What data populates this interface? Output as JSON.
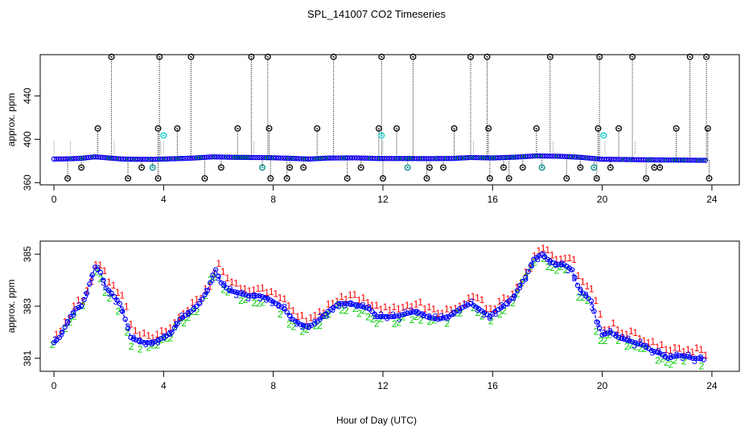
{
  "figure": {
    "title": "SPL_141007  CO2 Timeseries",
    "xlabel": "Hour of Day (UTC)"
  },
  "colors": {
    "black": "#000000",
    "blue": "#0000ff",
    "red": "#ff0000",
    "green": "#00cc00",
    "cyan": "#00cccc",
    "teal": "#008b8b",
    "flag_low": "#8b0000"
  },
  "chart_data": [
    {
      "type": "scatter",
      "panel": "top",
      "title": "",
      "xlabel": "",
      "ylabel": "approx. ppm",
      "xlim": [
        -0.5,
        25
      ],
      "ylim": [
        358,
        478
      ],
      "xticks": [
        0,
        4,
        8,
        12,
        16,
        20,
        24
      ],
      "yticks": [
        360,
        400,
        440
      ],
      "baseline": [
        [
          0,
          381.8
        ],
        [
          0.5,
          382.0
        ],
        [
          1.0,
          382.5
        ],
        [
          1.5,
          383.8
        ],
        [
          1.8,
          383.2
        ],
        [
          2.5,
          381.8
        ],
        [
          3.0,
          381.6
        ],
        [
          3.6,
          381.5
        ],
        [
          4.0,
          381.8
        ],
        [
          5.0,
          382.6
        ],
        [
          5.8,
          383.8
        ],
        [
          6.5,
          383.4
        ],
        [
          7.8,
          383.1
        ],
        [
          8.5,
          382.6
        ],
        [
          9.3,
          381.8
        ],
        [
          10.0,
          382.7
        ],
        [
          11.0,
          382.9
        ],
        [
          11.8,
          382.3
        ],
        [
          12.5,
          382.3
        ],
        [
          13.5,
          382.2
        ],
        [
          14.5,
          382.3
        ],
        [
          15.2,
          383.2
        ],
        [
          16.0,
          382.8
        ],
        [
          16.8,
          383.5
        ],
        [
          17.6,
          384.7
        ],
        [
          18.5,
          384.3
        ],
        [
          19.2,
          383.4
        ],
        [
          20.0,
          381.6
        ],
        [
          21.0,
          381.3
        ],
        [
          22.0,
          381.0
        ],
        [
          23.0,
          380.8
        ],
        [
          23.7,
          380.6
        ]
      ],
      "spike_high": [
        2.1,
        3.85,
        5.0,
        7.2,
        7.8,
        10.2,
        11.95,
        13.1,
        15.2,
        15.8,
        18.1,
        19.9,
        21.1,
        23.2,
        23.8
      ],
      "spike_mid": [
        1.6,
        3.8,
        4.5,
        6.7,
        7.85,
        9.6,
        11.85,
        12.5,
        14.6,
        15.85,
        17.6,
        19.85,
        20.6,
        22.7,
        23.85
      ],
      "spike_low": [
        0.5,
        2.7,
        3.8,
        5.5,
        7.9,
        8.5,
        10.7,
        12.0,
        13.6,
        15.9,
        16.6,
        18.7,
        19.8,
        21.6,
        23.9
      ],
      "dip_small": [
        1.0,
        3.2,
        6.1,
        8.6,
        9.1,
        11.2,
        13.7,
        14.2,
        16.4,
        17.1,
        19.2,
        20.3,
        21.9,
        22.1
      ],
      "dip_teal": [
        3.6,
        7.6,
        12.9,
        17.8,
        19.7
      ],
      "cyan_points": [
        [
          4.0,
          403.5
        ],
        [
          11.95,
          403.5
        ],
        [
          20.05,
          403.5
        ]
      ],
      "thin_spikes": [
        0.0,
        0.6,
        2.2,
        3.9,
        4.0,
        7.3,
        12.0,
        15.3,
        18.2,
        20.1,
        21.2
      ]
    },
    {
      "type": "scatter",
      "panel": "bottom",
      "title": "",
      "xlabel": "Hour of Day (UTC)",
      "ylabel": "approx. ppm",
      "xlim": [
        -0.5,
        25
      ],
      "ylim": [
        380.5,
        385.5
      ],
      "xticks": [
        0,
        4,
        8,
        12,
        16,
        20,
        24
      ],
      "yticks": [
        381,
        383,
        385
      ],
      "series": [
        {
          "name": "1",
          "symbol": "1",
          "color": "#ff0000",
          "offset": 0.3
        },
        {
          "name": "2",
          "symbol": "2",
          "color": "#00cc00",
          "offset": -0.15
        },
        {
          "name": "3",
          "symbol": "3",
          "color": "#0000ff",
          "offset": 0
        },
        {
          "name": "line",
          "symbol": "",
          "color": "#0000ff",
          "offset": 0
        }
      ],
      "profile": [
        [
          0,
          381.6
        ],
        [
          0.2,
          381.8
        ],
        [
          0.4,
          382.2
        ],
        [
          0.6,
          382.6
        ],
        [
          0.8,
          382.9
        ],
        [
          1.0,
          383.0
        ],
        [
          1.2,
          383.5
        ],
        [
          1.4,
          384.2
        ],
        [
          1.5,
          384.5
        ],
        [
          1.7,
          384.3
        ],
        [
          1.9,
          383.7
        ],
        [
          2.1,
          383.5
        ],
        [
          2.4,
          383.1
        ],
        [
          2.6,
          382.5
        ],
        [
          2.8,
          381.8
        ],
        [
          3.0,
          381.7
        ],
        [
          3.3,
          381.6
        ],
        [
          3.6,
          381.6
        ],
        [
          3.8,
          381.7
        ],
        [
          4.0,
          381.8
        ],
        [
          4.3,
          382.0
        ],
        [
          4.6,
          382.5
        ],
        [
          5.0,
          382.8
        ],
        [
          5.3,
          383.1
        ],
        [
          5.6,
          383.6
        ],
        [
          5.8,
          384.2
        ],
        [
          5.9,
          384.4
        ],
        [
          6.1,
          383.9
        ],
        [
          6.4,
          383.6
        ],
        [
          6.8,
          383.5
        ],
        [
          7.1,
          383.4
        ],
        [
          7.5,
          383.4
        ],
        [
          7.8,
          383.3
        ],
        [
          8.1,
          383.1
        ],
        [
          8.4,
          382.9
        ],
        [
          8.7,
          382.5
        ],
        [
          9.0,
          382.3
        ],
        [
          9.3,
          382.2
        ],
        [
          9.6,
          382.4
        ],
        [
          10.0,
          382.8
        ],
        [
          10.4,
          383.1
        ],
        [
          10.8,
          383.1
        ],
        [
          11.2,
          383.0
        ],
        [
          11.5,
          382.9
        ],
        [
          11.8,
          382.6
        ],
        [
          12.1,
          382.6
        ],
        [
          12.4,
          382.6
        ],
        [
          12.8,
          382.7
        ],
        [
          13.2,
          382.8
        ],
        [
          13.6,
          382.6
        ],
        [
          14.0,
          382.5
        ],
        [
          14.4,
          382.6
        ],
        [
          14.8,
          382.9
        ],
        [
          15.2,
          383.1
        ],
        [
          15.5,
          382.9
        ],
        [
          15.9,
          382.6
        ],
        [
          16.1,
          382.8
        ],
        [
          16.4,
          383.0
        ],
        [
          16.8,
          383.4
        ],
        [
          17.0,
          383.8
        ],
        [
          17.2,
          384.1
        ],
        [
          17.5,
          384.8
        ],
        [
          17.8,
          385.0
        ],
        [
          18.0,
          384.8
        ],
        [
          18.3,
          384.6
        ],
        [
          18.6,
          384.6
        ],
        [
          18.9,
          384.4
        ],
        [
          19.1,
          383.8
        ],
        [
          19.3,
          383.5
        ],
        [
          19.6,
          383.2
        ],
        [
          19.8,
          382.4
        ],
        [
          20.0,
          381.9
        ],
        [
          20.3,
          382.0
        ],
        [
          20.6,
          381.8
        ],
        [
          20.9,
          381.7
        ],
        [
          21.2,
          381.6
        ],
        [
          21.5,
          381.5
        ],
        [
          21.8,
          381.3
        ],
        [
          22.1,
          381.2
        ],
        [
          22.4,
          381.0
        ],
        [
          22.7,
          381.1
        ],
        [
          23.0,
          381.1
        ],
        [
          23.3,
          381.0
        ],
        [
          23.6,
          381.0
        ],
        [
          23.8,
          380.9
        ]
      ]
    }
  ]
}
